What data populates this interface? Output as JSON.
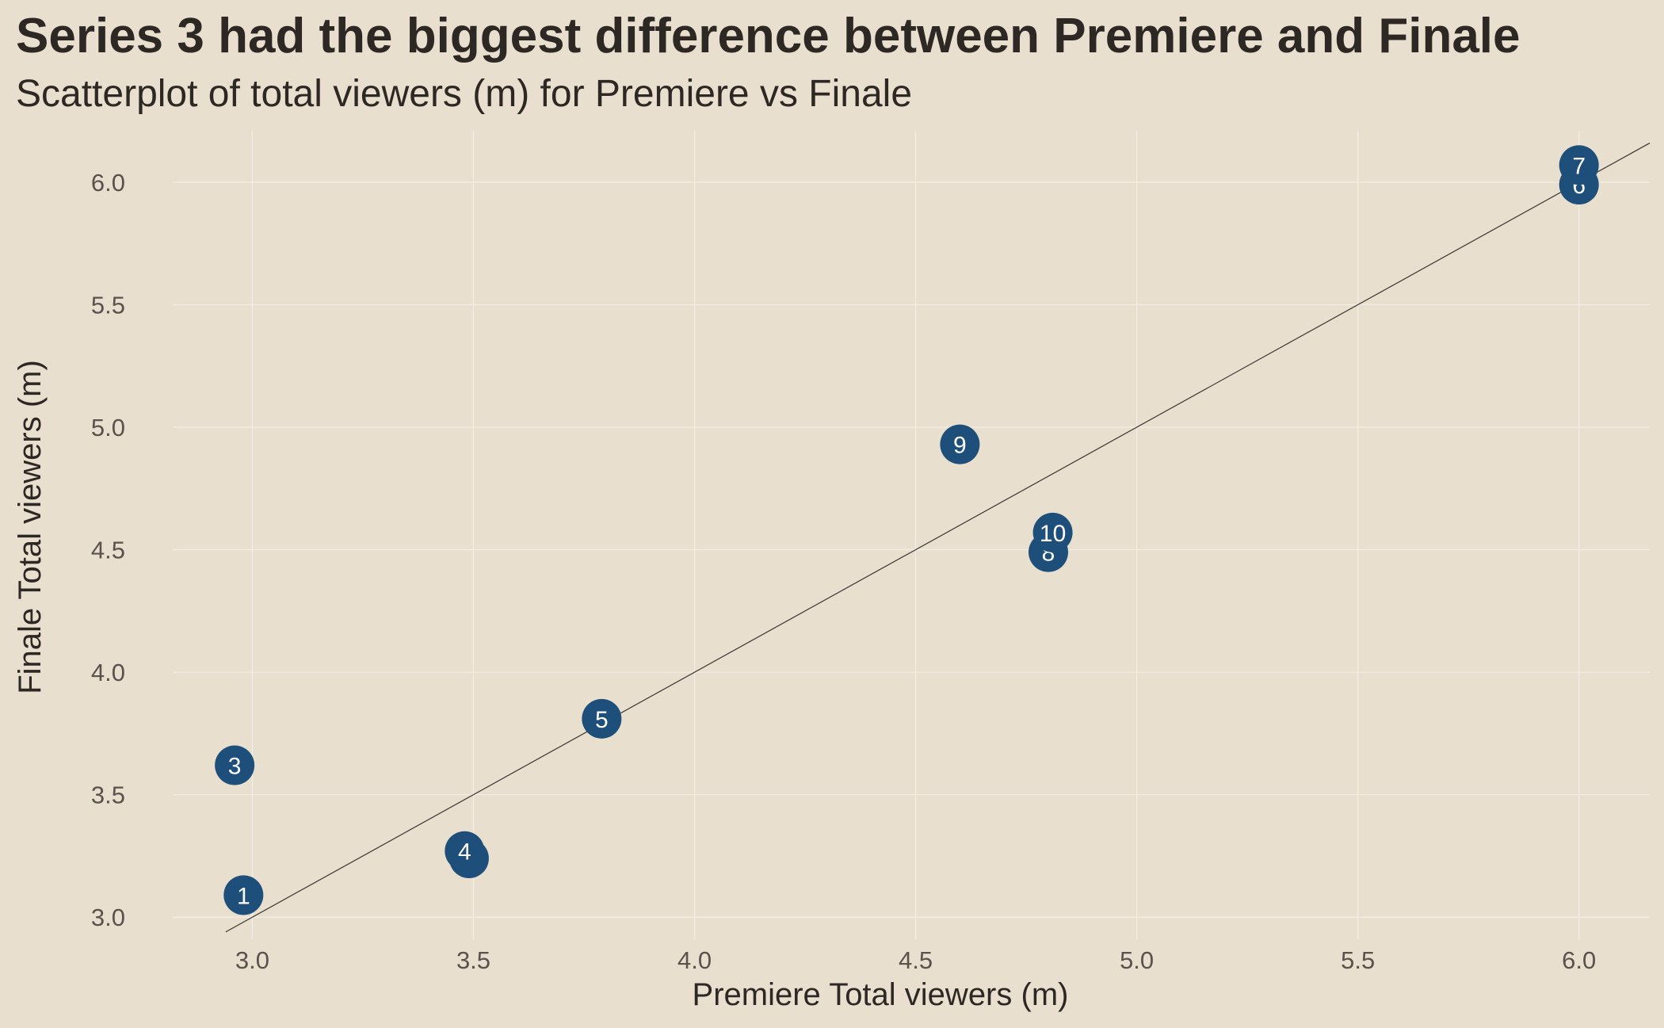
{
  "chart_data": {
    "type": "scatter",
    "title": "Series 3 had the biggest difference between Premiere and Finale",
    "subtitle": "Scatterplot of total viewers (m) for Premiere vs Finale",
    "xlabel": "Premiere Total viewers (m)",
    "ylabel": "Finale Total viewers (m)",
    "xlim": [
      2.82,
      6.16
    ],
    "ylim": [
      2.91,
      6.21
    ],
    "xticks": [
      3.0,
      3.5,
      4.0,
      4.5,
      5.0,
      5.5,
      6.0
    ],
    "xtick_labels": [
      "3.0",
      "3.5",
      "4.0",
      "4.5",
      "5.0",
      "5.5",
      "6.0"
    ],
    "yticks": [
      3.0,
      3.5,
      4.0,
      4.5,
      5.0,
      5.5,
      6.0
    ],
    "ytick_labels": [
      "3.0",
      "3.5",
      "4.0",
      "4.5",
      "5.0",
      "5.5",
      "6.0"
    ],
    "grid": true,
    "reference_line": {
      "slope": 1,
      "intercept": 0
    },
    "points": [
      {
        "label": "1",
        "x": 2.98,
        "y": 3.09
      },
      {
        "label": "2",
        "x": 3.49,
        "y": 3.24
      },
      {
        "label": "3",
        "x": 2.96,
        "y": 3.62
      },
      {
        "label": "4",
        "x": 3.48,
        "y": 3.27
      },
      {
        "label": "5",
        "x": 3.79,
        "y": 3.81
      },
      {
        "label": "6",
        "x": 6.0,
        "y": 5.99
      },
      {
        "label": "7",
        "x": 6.0,
        "y": 6.07
      },
      {
        "label": "8",
        "x": 4.8,
        "y": 4.49
      },
      {
        "label": "9",
        "x": 4.6,
        "y": 4.93
      },
      {
        "label": "10",
        "x": 4.81,
        "y": 4.57
      }
    ]
  },
  "colors": {
    "background": "#e8dfcf",
    "point": "#1d4f7a",
    "point_text": "#ffffff",
    "grid": "#f3eee5",
    "reference_line": "#3a3530",
    "title": "#2e2824",
    "tick": "#5a534d"
  }
}
